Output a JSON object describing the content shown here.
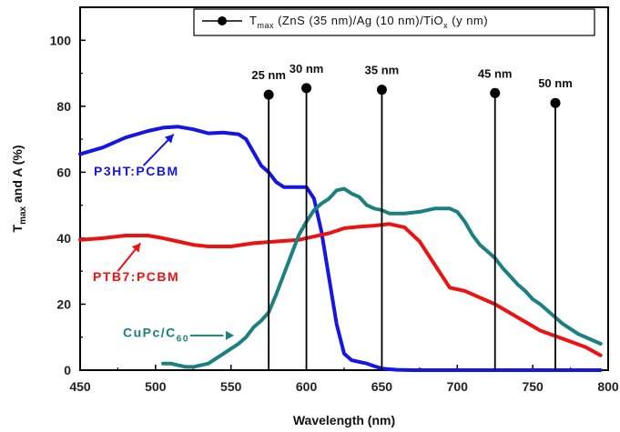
{
  "chart_data": {
    "type": "line",
    "xlabel": "Wavelength (nm)",
    "ylabel": {
      "main": "T",
      "sub": "max",
      "rest": " and A (%)"
    },
    "xlim": [
      450,
      800
    ],
    "ylim": [
      0,
      110
    ],
    "x_ticks": [
      450,
      500,
      550,
      600,
      650,
      700,
      750,
      800
    ],
    "y_ticks": [
      0,
      20,
      40,
      60,
      80,
      100
    ],
    "grid": false,
    "legend": {
      "position": "top-right",
      "parts": [
        {
          "t": "T",
          "s": ""
        },
        {
          "t": "max",
          "s": "sub"
        },
        {
          "t": " (ZnS (35 nm)/Ag (10 nm)/TiO",
          "s": ""
        },
        {
          "t": "x",
          "s": "sub"
        },
        {
          "t": " (y nm)",
          "s": ""
        }
      ]
    },
    "stems": {
      "name": "Tmax (ZnS (35 nm)/Ag (10 nm)/TiOx (y nm))",
      "color": "#000000",
      "points": [
        {
          "x": 575,
          "y": 83.5,
          "label": "25 nm"
        },
        {
          "x": 600,
          "y": 85.5,
          "label": "30 nm"
        },
        {
          "x": 650,
          "y": 85,
          "label": "35 nm"
        },
        {
          "x": 725,
          "y": 84,
          "label": "45 nm"
        },
        {
          "x": 765,
          "y": 81,
          "label": "50 nm"
        }
      ]
    },
    "series": [
      {
        "name": "P3HT:PCBM",
        "color": "#1515e6",
        "x": [
          450,
          465,
          480,
          495,
          505,
          515,
          525,
          535,
          545,
          555,
          560,
          565,
          570,
          575,
          580,
          585,
          590,
          595,
          600,
          605,
          610,
          615,
          620,
          625,
          630,
          635,
          640,
          645,
          650,
          660,
          670,
          700,
          750,
          795
        ],
        "y": [
          65.5,
          67.5,
          70.5,
          72.5,
          73.5,
          73.8,
          73,
          71.8,
          72,
          71.5,
          70,
          66,
          62,
          60,
          57,
          55.5,
          55.5,
          55.5,
          55.5,
          52,
          42,
          28,
          14,
          5,
          3,
          2.5,
          2,
          1.2,
          0.5,
          0.1,
          0,
          0,
          0,
          0
        ]
      },
      {
        "name": "PTB7:PCBM",
        "color": "#ee1111",
        "x": [
          450,
          465,
          480,
          495,
          505,
          515,
          525,
          535,
          550,
          565,
          580,
          595,
          605,
          615,
          625,
          635,
          645,
          655,
          665,
          675,
          685,
          695,
          705,
          715,
          725,
          740,
          755,
          770,
          785,
          795
        ],
        "y": [
          39.5,
          40,
          40.8,
          40.8,
          40,
          39,
          38,
          37.5,
          37.5,
          38.5,
          39,
          39.5,
          40.5,
          41.5,
          43,
          43.5,
          43.8,
          44.3,
          43.3,
          39,
          32,
          25,
          24,
          22,
          20,
          16,
          12,
          9.5,
          7,
          4.5
        ]
      },
      {
        "name": "CuPc/C60",
        "color": "#1a8080",
        "x": [
          505,
          510,
          515,
          520,
          525,
          530,
          535,
          540,
          545,
          550,
          555,
          560,
          565,
          570,
          575,
          580,
          585,
          590,
          595,
          600,
          605,
          610,
          615,
          620,
          625,
          630,
          635,
          640,
          645,
          650,
          655,
          665,
          675,
          685,
          695,
          700,
          705,
          710,
          715,
          720,
          725,
          730,
          735,
          740,
          745,
          750,
          755,
          760,
          770,
          780,
          795
        ],
        "y": [
          2,
          2,
          1.5,
          1,
          1,
          1.5,
          2,
          3.5,
          5,
          6.5,
          8,
          10,
          13,
          15,
          17.5,
          23,
          29,
          35,
          41,
          45,
          48.5,
          50.5,
          52,
          54.5,
          55,
          53.5,
          52.5,
          50,
          49,
          48.5,
          47.5,
          47.5,
          48,
          49,
          49,
          48,
          45,
          41,
          38,
          36,
          34,
          31,
          28.5,
          26,
          24,
          21.5,
          20,
          18,
          14,
          11,
          8
        ]
      }
    ],
    "labels": {
      "p3ht": "P3HT:PCBM",
      "ptb7": "PTB7:PCBM",
      "cupc_main": "CuPc/C",
      "cupc_sub": "60"
    }
  }
}
